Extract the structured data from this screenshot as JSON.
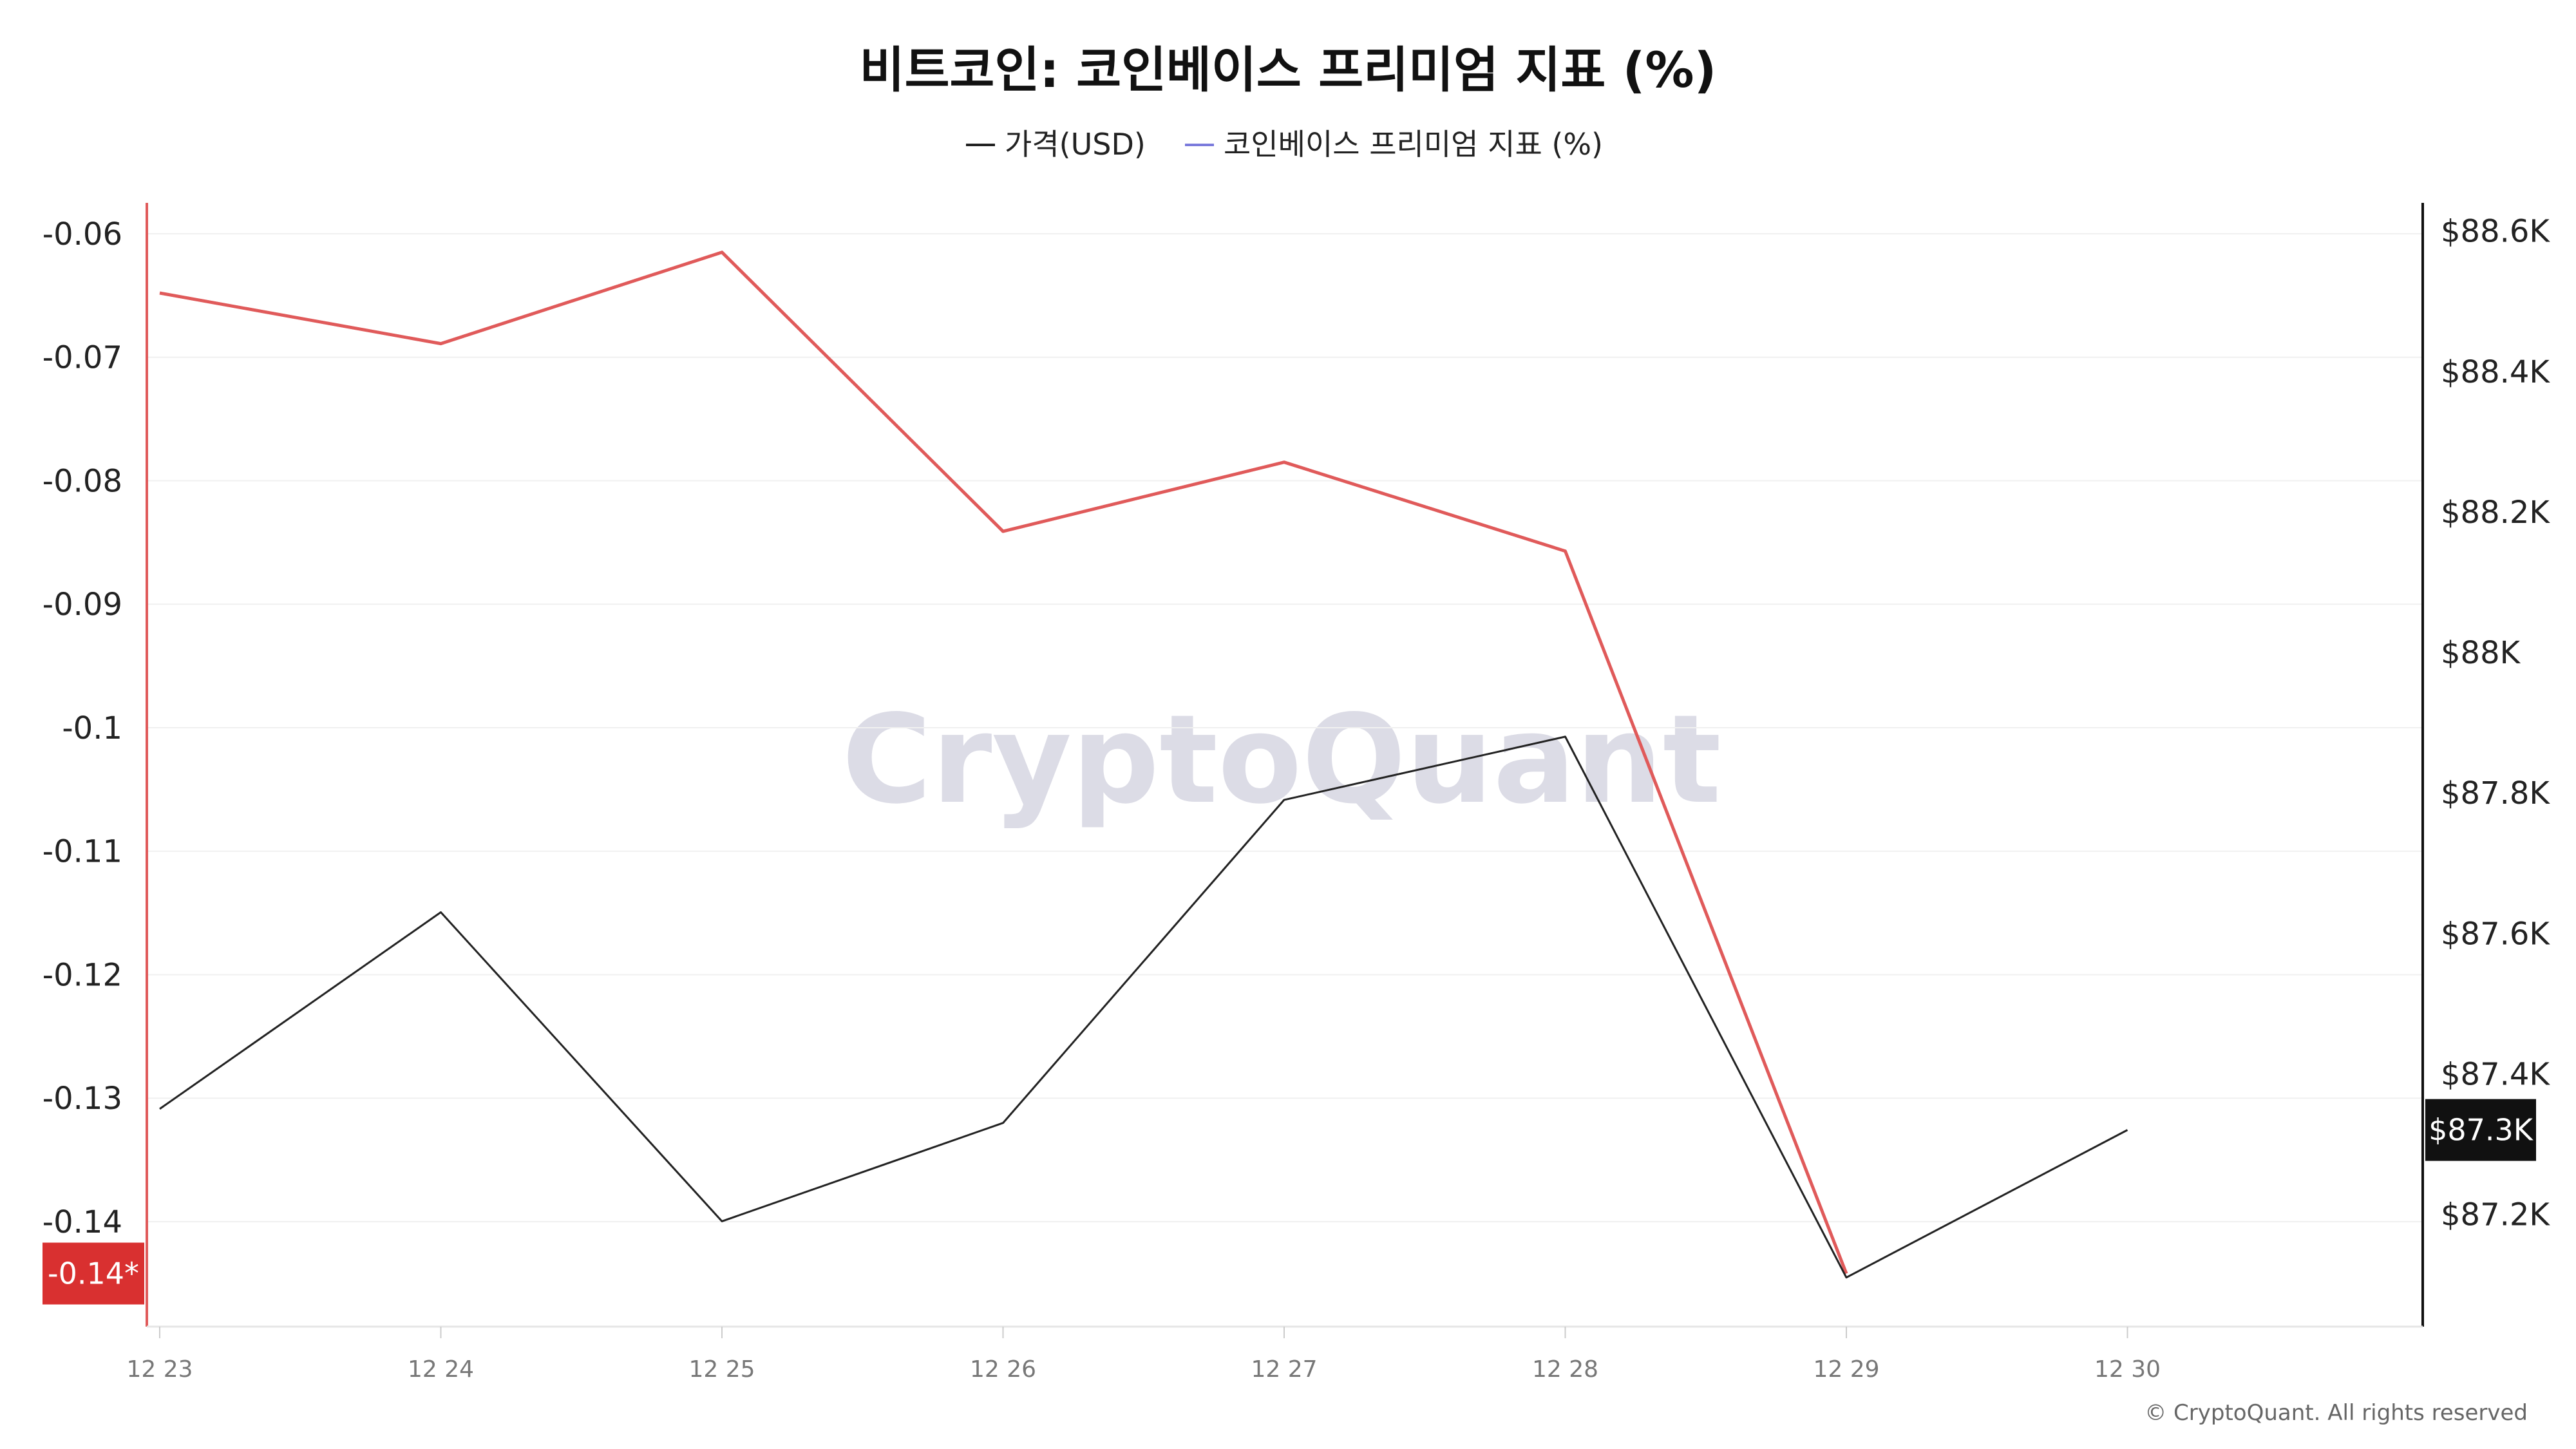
{
  "chart_data": {
    "type": "line",
    "title": "비트코인: 코인베이스 프리미엄 지표 (%)",
    "legend": [
      {
        "name": "가격(USD)",
        "color": "#222222"
      },
      {
        "name": "코인베이스 프리미엄 지표 (%)",
        "color": "#7b7bdc"
      }
    ],
    "legend_placement": "top-center",
    "x": [
      "12 23",
      "12 24",
      "12 25",
      "12 26",
      "12 27",
      "12 28",
      "12 29",
      "12 30"
    ],
    "y_left": {
      "ticks": [
        "-0.06",
        "-0.07",
        "-0.08",
        "-0.09",
        "-0.1",
        "-0.11",
        "-0.12",
        "-0.13",
        "-0.14"
      ],
      "range": [
        -0.1485,
        -0.0575
      ]
    },
    "y_right": {
      "ticks": [
        "$88.6K",
        "$88.4K",
        "$88.2K",
        "$88K",
        "$87.8K",
        "$87.6K",
        "$87.4K",
        "$87.2K"
      ],
      "range": [
        87.04,
        88.64
      ]
    },
    "series": [
      {
        "name": "코인베이스 프리미엄 지표 (%)",
        "axis": "left",
        "color": "#e05a5a",
        "values": [
          -0.0648,
          -0.0689,
          -0.0615,
          -0.0841,
          -0.0785,
          -0.0857,
          -0.1442,
          null
        ]
      },
      {
        "name": "가격(USD)",
        "axis": "right",
        "color": "#222222",
        "values": [
          87.35,
          87.63,
          87.19,
          87.33,
          87.79,
          87.88,
          87.11,
          87.32
        ]
      }
    ],
    "current_value_badges": {
      "left": {
        "label": "-0.14*",
        "value": -0.1442,
        "color": "#d93030"
      },
      "right": {
        "label": "$87.3K",
        "value": 87.32,
        "color": "#111111"
      }
    },
    "grid": true,
    "watermark": "CryptoQuant",
    "copyright": "© CryptoQuant. All rights reserved"
  }
}
